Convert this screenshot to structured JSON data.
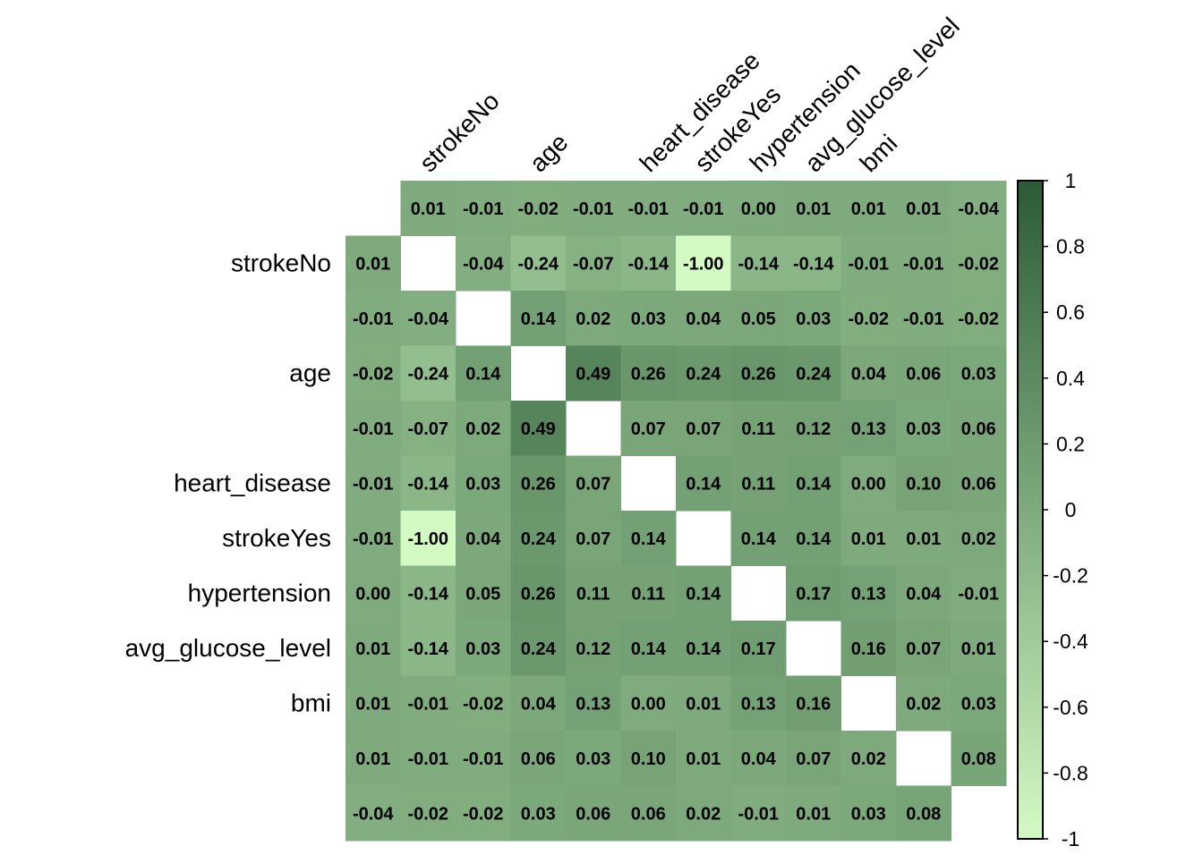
{
  "chart_data": {
    "type": "heatmap",
    "title": "",
    "labels": [
      "",
      "strokeNo",
      "",
      "age",
      "",
      "heart_disease",
      "strokeYes",
      "hypertension",
      "avg_glucose_level",
      "bmi",
      "",
      ""
    ],
    "matrix": [
      [
        null,
        0.01,
        -0.01,
        -0.02,
        -0.01,
        -0.01,
        -0.01,
        0.0,
        0.01,
        0.01,
        0.01,
        -0.04
      ],
      [
        0.01,
        null,
        -0.04,
        -0.24,
        -0.07,
        -0.14,
        -1.0,
        -0.14,
        -0.14,
        -0.01,
        -0.01,
        -0.02
      ],
      [
        -0.01,
        -0.04,
        null,
        0.14,
        0.02,
        0.03,
        0.04,
        0.05,
        0.03,
        -0.02,
        -0.01,
        -0.02
      ],
      [
        -0.02,
        -0.24,
        0.14,
        null,
        0.49,
        0.26,
        0.24,
        0.26,
        0.24,
        0.04,
        0.06,
        0.03
      ],
      [
        -0.01,
        -0.07,
        0.02,
        0.49,
        null,
        0.07,
        0.07,
        0.11,
        0.12,
        0.13,
        0.03,
        0.06
      ],
      [
        -0.01,
        -0.14,
        0.03,
        0.26,
        0.07,
        null,
        0.14,
        0.11,
        0.14,
        0.0,
        0.1,
        0.06
      ],
      [
        -0.01,
        -1.0,
        0.04,
        0.24,
        0.07,
        0.14,
        null,
        0.14,
        0.14,
        0.01,
        0.01,
        0.02
      ],
      [
        0.0,
        -0.14,
        0.05,
        0.26,
        0.11,
        0.11,
        0.14,
        null,
        0.17,
        0.13,
        0.04,
        -0.01
      ],
      [
        0.01,
        -0.14,
        0.03,
        0.24,
        0.12,
        0.14,
        0.14,
        0.17,
        null,
        0.16,
        0.07,
        0.01
      ],
      [
        0.01,
        -0.01,
        -0.02,
        0.04,
        0.13,
        0.0,
        0.01,
        0.13,
        0.16,
        null,
        0.02,
        0.03
      ],
      [
        0.01,
        -0.01,
        -0.01,
        0.06,
        0.03,
        0.1,
        0.01,
        0.04,
        0.07,
        0.02,
        null,
        0.08
      ],
      [
        -0.04,
        -0.02,
        -0.02,
        0.03,
        0.06,
        0.06,
        0.02,
        -0.01,
        0.01,
        0.03,
        0.08,
        null
      ]
    ],
    "diagonal": "blank",
    "value_range": [
      -1,
      1
    ],
    "colorbar": {
      "ticks": [
        "1",
        "0.8",
        "0.6",
        "0.4",
        "0.2",
        "0",
        "-0.2",
        "-0.4",
        "-0.6",
        "-0.8",
        "-1"
      ],
      "placement": "right"
    },
    "colors": {
      "low": "#d4fac4",
      "mid": "#7fab7e",
      "high": "#2b5b36",
      "diagonal": "#ffffff",
      "text": "#000000"
    }
  }
}
